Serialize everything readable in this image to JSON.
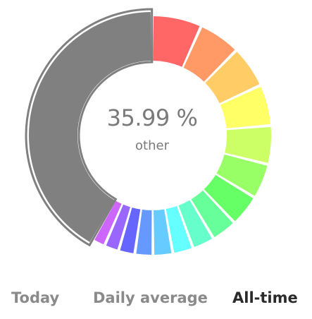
{
  "chart_data": {
    "type": "pie",
    "center_value": "35.99 %",
    "center_label": "other",
    "highlighted_slice": 0,
    "slices": [
      {
        "value": 35.99,
        "color": "#808080"
      },
      {
        "value": 5.8,
        "color": "#ff6666"
      },
      {
        "value": 4.9,
        "color": "#ff9966"
      },
      {
        "value": 4.9,
        "color": "#ffcc66"
      },
      {
        "value": 4.8,
        "color": "#ffff66"
      },
      {
        "value": 4.5,
        "color": "#ccff66"
      },
      {
        "value": 4.1,
        "color": "#99ff66"
      },
      {
        "value": 3.7,
        "color": "#66ff66"
      },
      {
        "value": 3.0,
        "color": "#66ff99"
      },
      {
        "value": 2.6,
        "color": "#66ffcc"
      },
      {
        "value": 2.4,
        "color": "#66ffff"
      },
      {
        "value": 2.3,
        "color": "#66ccff"
      },
      {
        "value": 2.1,
        "color": "#6699ff"
      },
      {
        "value": 1.9,
        "color": "#6666ff"
      },
      {
        "value": 1.7,
        "color": "#9966ff"
      },
      {
        "value": 1.5,
        "color": "#cc66ff"
      }
    ]
  },
  "tabs": [
    {
      "label": "Today",
      "active": false
    },
    {
      "label": "Daily average",
      "active": false
    },
    {
      "label": "All-time",
      "active": true
    }
  ]
}
